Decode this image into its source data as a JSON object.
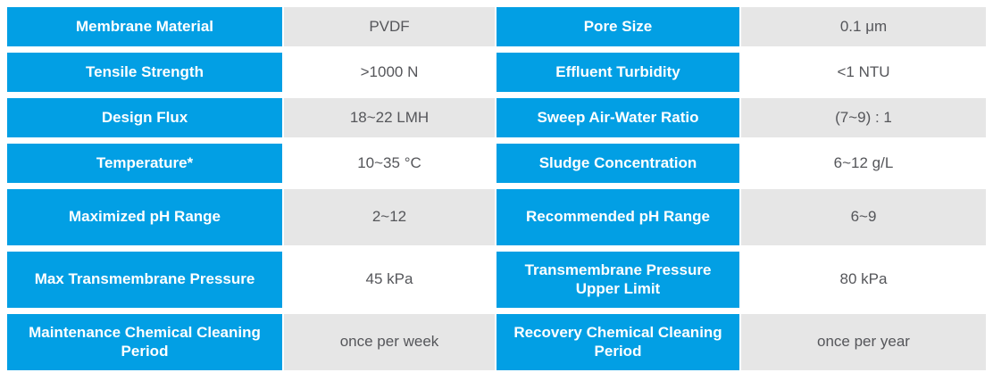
{
  "table": {
    "name": "membrane-specification-table",
    "accent_color": "#029FE4",
    "value_row_shade_color": "#E6E6E6",
    "value_row_plain_color": "#FFFFFF",
    "label_text_color": "#FFFFFF",
    "value_text_color": "#55565A",
    "rows": [
      {
        "left_label": "Membrane Material",
        "left_value": "PVDF",
        "right_label": "Pore Size",
        "right_value": "0.1 μm"
      },
      {
        "left_label": "Tensile Strength",
        "left_value": ">1000 N",
        "right_label": "Effluent Turbidity",
        "right_value": "<1 NTU"
      },
      {
        "left_label": "Design Flux",
        "left_value": "18~22 LMH",
        "right_label": "Sweep Air-Water Ratio",
        "right_value": "(7~9) : 1"
      },
      {
        "left_label": "Temperature*",
        "left_value": "10~35 °C",
        "right_label": "Sludge Concentration",
        "right_value": "6~12 g/L"
      },
      {
        "left_label": "Maximized pH Range",
        "left_value": "2~12",
        "right_label": "Recommended pH Range",
        "right_value": "6~9"
      },
      {
        "left_label": "Max Transmembrane Pressure",
        "left_value": "45 kPa",
        "right_label": "Transmembrane Pressure Upper Limit",
        "right_value": "80 kPa"
      },
      {
        "left_label": "Maintenance Chemical Cleaning Period",
        "left_value": "once per week",
        "right_label": "Recovery Chemical Cleaning Period",
        "right_value": "once per year"
      }
    ]
  }
}
